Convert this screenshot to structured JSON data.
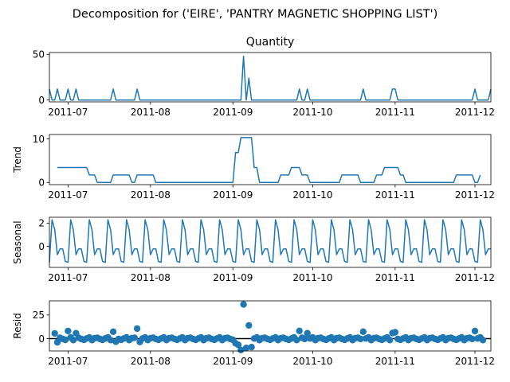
{
  "figure": {
    "suptitle": "Decomposition for ('EIRE', 'PANTRY MAGNETIC  SHOPPING LIST')",
    "line_color": "#1f77b4"
  },
  "chart_data": [
    {
      "type": "line",
      "title": "Quantity",
      "ylabel": "",
      "x": [
        "2011-06-24",
        "2011-12-07"
      ],
      "xlim": [
        "2011-06-24",
        "2011-12-07"
      ],
      "ylim": [
        -2,
        52
      ],
      "yticks": [
        0,
        50
      ],
      "xtick_labels": [
        "2011-07",
        "2011-08",
        "2011-09",
        "2011-10",
        "2011-11",
        "2011-12"
      ],
      "xtick_dates": [
        "2011-07-01",
        "2011-08-01",
        "2011-09-01",
        "2011-10-01",
        "2011-11-01",
        "2011-12-01"
      ],
      "baseline": 0,
      "spikes": [
        [
          "2011-06-24",
          12
        ],
        [
          "2011-06-27",
          12
        ],
        [
          "2011-07-01",
          12
        ],
        [
          "2011-07-04",
          12
        ],
        [
          "2011-07-18",
          12
        ],
        [
          "2011-07-27",
          12
        ],
        [
          "2011-09-05",
          48
        ],
        [
          "2011-09-07",
          24
        ],
        [
          "2011-09-26",
          12
        ],
        [
          "2011-09-29",
          12
        ],
        [
          "2011-10-20",
          12
        ],
        [
          "2011-10-31",
          12
        ],
        [
          "2011-11-01",
          12
        ],
        [
          "2011-12-01",
          12
        ],
        [
          "2011-12-07",
          12
        ]
      ]
    },
    {
      "type": "line",
      "title": "",
      "ylabel": "Trend",
      "xlim": [
        "2011-06-24",
        "2011-12-07"
      ],
      "ylim": [
        -0.5,
        11
      ],
      "yticks": [
        0,
        10
      ],
      "xtick_labels": [
        "2011-07",
        "2011-08",
        "2011-09",
        "2011-10",
        "2011-11",
        "2011-12"
      ],
      "xtick_dates": [
        "2011-07-01",
        "2011-08-01",
        "2011-09-01",
        "2011-10-01",
        "2011-11-01",
        "2011-12-01"
      ],
      "points": [
        [
          "2011-06-27",
          3.43
        ],
        [
          "2011-07-08",
          3.43
        ],
        [
          "2011-07-09",
          1.71
        ],
        [
          "2011-07-11",
          1.71
        ],
        [
          "2011-07-12",
          0
        ],
        [
          "2011-07-17",
          0
        ],
        [
          "2011-07-18",
          1.71
        ],
        [
          "2011-07-24",
          1.71
        ],
        [
          "2011-07-25",
          0
        ],
        [
          "2011-07-26",
          0
        ],
        [
          "2011-07-27",
          1.71
        ],
        [
          "2011-08-02",
          1.71
        ],
        [
          "2011-08-03",
          0
        ],
        [
          "2011-09-01",
          0
        ],
        [
          "2011-09-02",
          6.86
        ],
        [
          "2011-09-03",
          6.86
        ],
        [
          "2011-09-04",
          10.29
        ],
        [
          "2011-09-08",
          10.29
        ],
        [
          "2011-09-09",
          3.43
        ],
        [
          "2011-09-10",
          3.43
        ],
        [
          "2011-09-11",
          0
        ],
        [
          "2011-09-18",
          0
        ],
        [
          "2011-09-19",
          1.71
        ],
        [
          "2011-09-22",
          1.71
        ],
        [
          "2011-09-23",
          3.43
        ],
        [
          "2011-09-26",
          3.43
        ],
        [
          "2011-09-27",
          1.71
        ],
        [
          "2011-09-29",
          1.71
        ],
        [
          "2011-09-30",
          0
        ],
        [
          "2011-10-11",
          0
        ],
        [
          "2011-10-12",
          1.71
        ],
        [
          "2011-10-18",
          1.71
        ],
        [
          "2011-10-19",
          0
        ],
        [
          "2011-10-24",
          0
        ],
        [
          "2011-10-25",
          1.71
        ],
        [
          "2011-10-27",
          1.71
        ],
        [
          "2011-10-28",
          3.43
        ],
        [
          "2011-11-02",
          3.43
        ],
        [
          "2011-11-03",
          1.71
        ],
        [
          "2011-11-04",
          1.71
        ],
        [
          "2011-11-05",
          0
        ],
        [
          "2011-11-23",
          0
        ],
        [
          "2011-11-24",
          1.71
        ],
        [
          "2011-11-30",
          1.71
        ],
        [
          "2011-12-01",
          0
        ],
        [
          "2011-12-02",
          0
        ],
        [
          "2011-12-03",
          1.71
        ]
      ]
    },
    {
      "type": "line",
      "title": "",
      "ylabel": "Seasonal",
      "xlim": [
        "2011-06-24",
        "2011-12-07"
      ],
      "ylim": [
        -1.8,
        2.5
      ],
      "yticks": [
        0,
        2
      ],
      "xtick_labels": [
        "2011-07",
        "2011-08",
        "2011-09",
        "2011-10",
        "2011-11",
        "2011-12"
      ],
      "xtick_dates": [
        "2011-07-01",
        "2011-08-01",
        "2011-09-01",
        "2011-10-01",
        "2011-11-01",
        "2011-12-01"
      ],
      "start": "2011-06-24",
      "end": "2011-12-07",
      "period_days": 7,
      "cycle": [
        -1.36,
        2.29,
        1.43,
        -0.71,
        -0.21,
        -0.21,
        -1.29,
        -1.36
      ]
    },
    {
      "type": "scatter",
      "title": "",
      "ylabel": "Resid",
      "xlim": [
        "2011-06-24",
        "2011-12-07"
      ],
      "ylim": [
        -13,
        40
      ],
      "yticks": [
        0,
        25
      ],
      "zero_line": true,
      "xtick_labels": [
        "2011-07",
        "2011-08",
        "2011-09",
        "2011-10",
        "2011-11",
        "2011-12"
      ],
      "xtick_dates": [
        "2011-07-01",
        "2011-08-01",
        "2011-09-01",
        "2011-10-01",
        "2011-11-01",
        "2011-12-01"
      ],
      "start": "2011-06-26",
      "end": "2011-12-04",
      "base_cycle": [
        -1.5,
        0.5,
        1.0,
        -0.3,
        -1.2,
        0.2,
        1.3
      ],
      "points": [
        [
          "2011-06-26",
          5.6
        ],
        [
          "2011-06-27",
          -3.8
        ],
        [
          "2011-07-01",
          8.1
        ],
        [
          "2011-07-04",
          5.8
        ],
        [
          "2011-07-18",
          7.4
        ],
        [
          "2011-07-19",
          -3.2
        ],
        [
          "2011-07-27",
          10.6
        ],
        [
          "2011-07-28",
          -3.5
        ],
        [
          "2011-09-02",
          -4.8
        ],
        [
          "2011-09-03",
          -6.5
        ],
        [
          "2011-09-04",
          -12.0
        ],
        [
          "2011-09-05",
          36.2
        ],
        [
          "2011-09-06",
          -9.8
        ],
        [
          "2011-09-07",
          14.0
        ],
        [
          "2011-09-08",
          -9.0
        ],
        [
          "2011-09-26",
          8.2
        ],
        [
          "2011-09-29",
          5.8
        ],
        [
          "2011-10-20",
          7.4
        ],
        [
          "2011-10-31",
          5.9
        ],
        [
          "2011-11-01",
          6.8
        ],
        [
          "2011-12-01",
          8.0
        ]
      ]
    }
  ]
}
